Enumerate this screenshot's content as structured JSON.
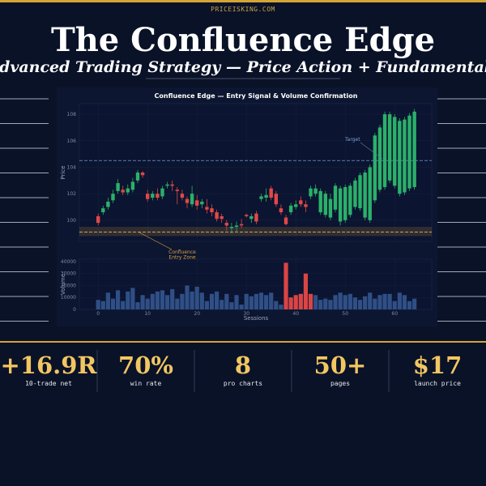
{
  "header": {
    "site": "PRICEISKING.COM",
    "title": "The Confluence Edge",
    "subtitle": "Advanced Trading Strategy — Price Action + Fundamentals"
  },
  "chart_data": [
    {
      "type": "candlestick",
      "title": "Confluence Edge — Entry Signal & Volume Confirmation",
      "ylabel": "Price",
      "xlim": [
        -3.8,
        67.5
      ],
      "ylim": [
        98.4,
        108.8
      ],
      "yticks": [
        100,
        102,
        104,
        106,
        108
      ],
      "grid": true,
      "up_color": "#2bb06a",
      "down_color": "#e04848",
      "x": [
        0,
        1,
        2,
        3,
        4,
        5,
        6,
        7,
        8,
        9,
        10,
        11,
        12,
        13,
        14,
        15,
        16,
        17,
        18,
        19,
        20,
        21,
        22,
        23,
        24,
        25,
        26,
        27,
        28,
        29,
        30,
        31,
        32,
        33,
        34,
        35,
        36,
        37,
        38,
        39,
        40,
        41,
        42,
        43,
        44,
        45,
        46,
        47,
        48,
        49,
        50,
        51,
        52,
        53,
        54,
        55,
        56,
        57,
        58,
        59,
        60,
        61,
        62,
        63,
        64
      ],
      "open": [
        100.3,
        100.6,
        101.0,
        101.5,
        102.2,
        102.3,
        102.1,
        102.3,
        103.0,
        103.6,
        102.0,
        101.7,
        102.0,
        101.8,
        102.6,
        102.7,
        102.3,
        102.0,
        101.6,
        101.2,
        101.5,
        101.2,
        101.0,
        100.9,
        100.6,
        100.3,
        99.8,
        99.4,
        99.5,
        99.7,
        100.4,
        100.1,
        100.5,
        101.6,
        101.7,
        102.4,
        102.0,
        100.9,
        100.2,
        100.6,
        101.0,
        101.5,
        101.2,
        101.8,
        102.0,
        100.6,
        100.4,
        100.2,
        100.8,
        99.9,
        100.0,
        100.4,
        101.0,
        100.9,
        100.2,
        100.0,
        101.5,
        102.3,
        102.5,
        103.0,
        102.6,
        102.0,
        102.1,
        102.4,
        102.5
      ],
      "close": [
        99.8,
        100.9,
        101.4,
        102.0,
        102.8,
        102.1,
        102.4,
        102.9,
        103.6,
        103.4,
        101.6,
        102.0,
        101.7,
        102.4,
        102.7,
        102.6,
        102.2,
        101.7,
        101.3,
        102.0,
        101.1,
        101.4,
        100.8,
        100.6,
        100.1,
        100.1,
        99.6,
        99.5,
        99.6,
        99.6,
        100.3,
        100.3,
        99.9,
        101.8,
        101.9,
        101.7,
        101.2,
        100.6,
        99.7,
        101.1,
        101.2,
        101.2,
        101.0,
        102.4,
        102.4,
        102.2,
        102.0,
        101.6,
        102.6,
        102.4,
        102.5,
        102.6,
        103.0,
        103.4,
        103.6,
        104.0,
        106.4,
        107.0,
        108.0,
        108.0,
        107.8,
        107.5,
        107.6,
        107.9,
        108.2
      ],
      "high": [
        100.5,
        101.1,
        101.7,
        102.3,
        103.1,
        102.6,
        102.7,
        103.2,
        103.8,
        103.7,
        102.3,
        102.2,
        102.4,
        102.6,
        102.9,
        103.0,
        102.5,
        102.3,
        101.8,
        102.6,
        101.9,
        101.6,
        101.6,
        101.2,
        100.8,
        100.5,
        100.0,
        99.8,
        99.9,
        100.1,
        100.5,
        100.5,
        100.7,
        102.0,
        102.4,
        102.6,
        102.2,
        101.2,
        100.4,
        101.3,
        101.5,
        101.8,
        101.5,
        102.6,
        102.7,
        102.4,
        102.2,
        102.0,
        102.8,
        102.6,
        102.7,
        102.8,
        103.2,
        103.6,
        103.8,
        104.2,
        106.6,
        107.2,
        108.2,
        108.2,
        108.0,
        107.7,
        107.8,
        108.1,
        108.4
      ],
      "low": [
        99.6,
        100.4,
        100.8,
        101.3,
        102.0,
        101.9,
        101.9,
        102.1,
        102.8,
        103.2,
        101.4,
        101.5,
        101.5,
        101.6,
        102.4,
        102.2,
        101.2,
        101.5,
        100.9,
        101.0,
        100.8,
        100.9,
        100.5,
        100.3,
        99.9,
        99.8,
        99.2,
        99.0,
        99.1,
        99.4,
        100.2,
        99.8,
        99.7,
        101.4,
        101.4,
        101.5,
        101.0,
        100.4,
        99.6,
        100.4,
        100.8,
        101.0,
        100.6,
        101.6,
        101.8,
        100.4,
        100.2,
        100.0,
        100.6,
        99.6,
        99.8,
        100.2,
        100.8,
        100.7,
        100.0,
        99.8,
        101.3,
        102.1,
        102.3,
        102.8,
        102.4,
        101.8,
        101.9,
        102.2,
        102.3
      ],
      "target": {
        "value": 104.5,
        "label": "Target",
        "color": "#5b7fb0"
      },
      "entry_zone": {
        "line": 99.1,
        "range": [
          98.8,
          99.5
        ],
        "label_lines": [
          "Confluence",
          "Entry Zone"
        ],
        "color": "#d4a040"
      }
    },
    {
      "type": "bar",
      "xlabel": "Sessions",
      "ylabel": "Volume",
      "xlim": [
        -3.8,
        67.5
      ],
      "xticks": [
        0,
        10,
        20,
        30,
        40,
        50,
        60
      ],
      "ylim": [
        0,
        42000
      ],
      "yticks": [
        0,
        10000,
        20000,
        30000,
        40000
      ],
      "grid": true,
      "values": [
        8000,
        7000,
        14000,
        9000,
        16000,
        7000,
        15000,
        18000,
        6000,
        12000,
        9000,
        13000,
        15000,
        16000,
        12000,
        17000,
        9000,
        13000,
        20000,
        15000,
        19000,
        14000,
        7000,
        13000,
        15000,
        8000,
        13000,
        6000,
        12000,
        4000,
        13000,
        11000,
        13000,
        14000,
        12000,
        14000,
        7000,
        4000,
        39000,
        10000,
        12000,
        13000,
        30000,
        13000,
        12000,
        8000,
        9000,
        8000,
        12000,
        14000,
        12000,
        13000,
        10000,
        8000,
        11000,
        14000,
        9000,
        12000,
        13000,
        13000,
        7000,
        14000,
        12000,
        7000,
        9000
      ],
      "colors": [
        "#2f4f86",
        "#2f4f86",
        "#2f4f86",
        "#2f4f86",
        "#2f4f86",
        "#2f4f86",
        "#2f4f86",
        "#2f4f86",
        "#2f4f86",
        "#2f4f86",
        "#2f4f86",
        "#2f4f86",
        "#2f4f86",
        "#2f4f86",
        "#2f4f86",
        "#2f4f86",
        "#2f4f86",
        "#2f4f86",
        "#2f4f86",
        "#2f4f86",
        "#2f4f86",
        "#2f4f86",
        "#2f4f86",
        "#2f4f86",
        "#2f4f86",
        "#2f4f86",
        "#2f4f86",
        "#2f4f86",
        "#2f4f86",
        "#2f4f86",
        "#2f4f86",
        "#2f4f86",
        "#2f4f86",
        "#2f4f86",
        "#2f4f86",
        "#2f4f86",
        "#2f4f86",
        "#2f4f86",
        "#d94545",
        "#d94545",
        "#d94545",
        "#d94545",
        "#d94545",
        "#d94545",
        "#2f4f86",
        "#2f4f86",
        "#2f4f86",
        "#2f4f86",
        "#2f4f86",
        "#2f4f86",
        "#2f4f86",
        "#2f4f86",
        "#2f4f86",
        "#2f4f86",
        "#2f4f86",
        "#2f4f86",
        "#2f4f86",
        "#2f4f86",
        "#2f4f86",
        "#2f4f86",
        "#2f4f86",
        "#2f4f86",
        "#2f4f86",
        "#2f4f86",
        "#2f4f86"
      ]
    }
  ],
  "stats": [
    {
      "value": "+16.9R",
      "label": "10-trade net"
    },
    {
      "value": "70%",
      "label": "win rate"
    },
    {
      "value": "8",
      "label": "pro charts"
    },
    {
      "value": "50+",
      "label": "pages"
    },
    {
      "value": "$17",
      "label": "launch price"
    }
  ]
}
